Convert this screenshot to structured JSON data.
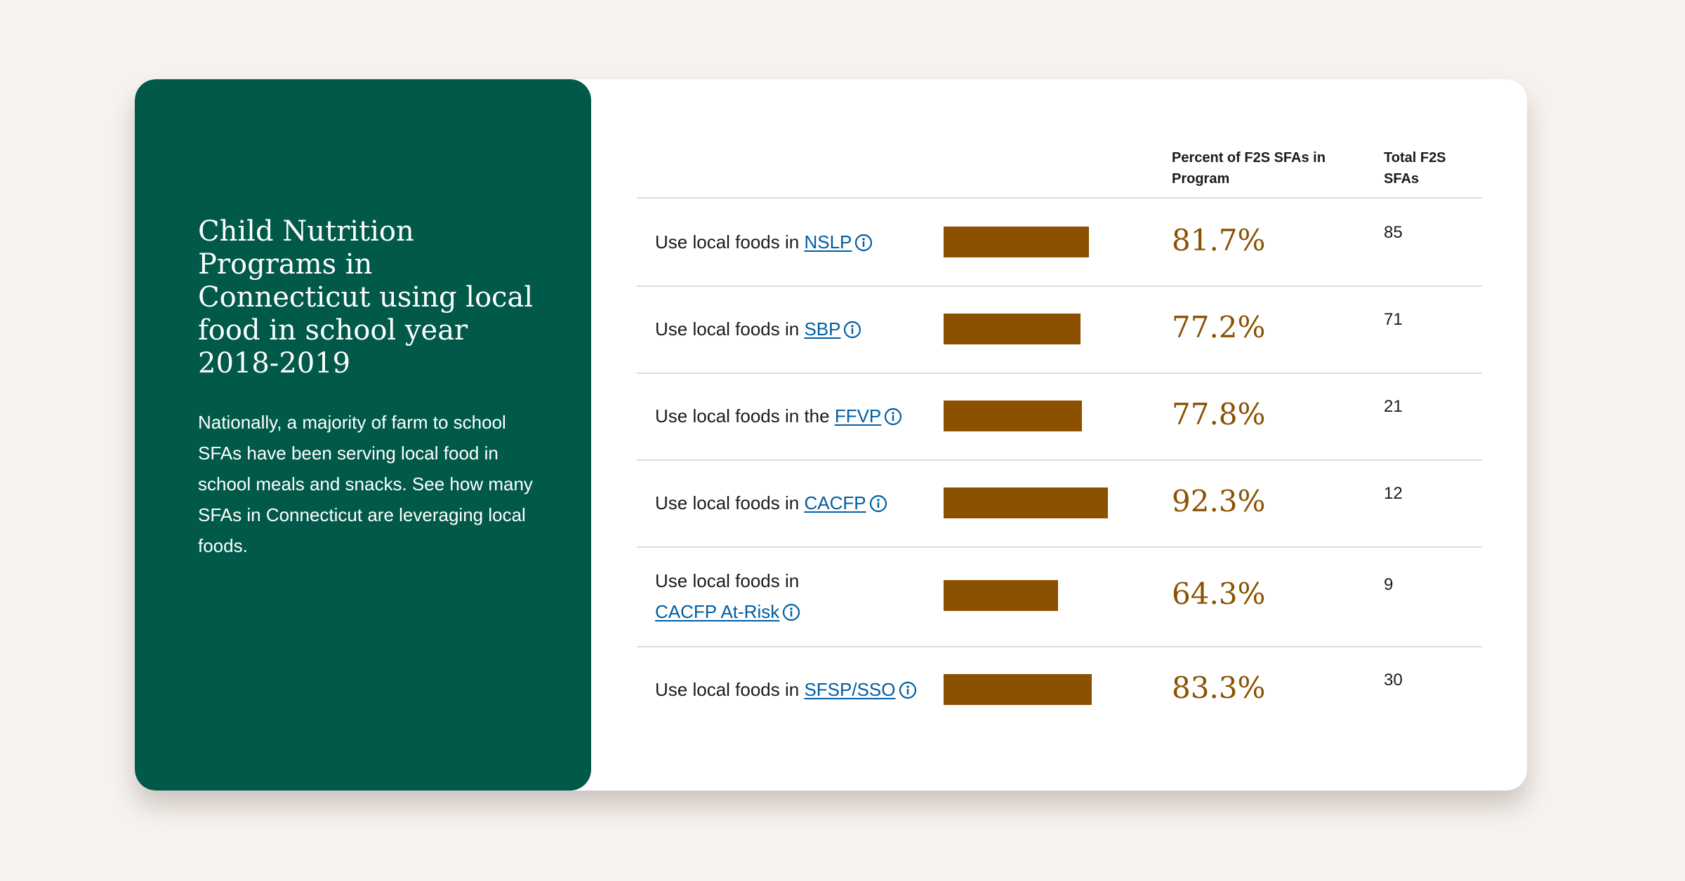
{
  "panel": {
    "title": "Child Nutrition Programs in Connecticut using local food in school year 2018-2019",
    "description": "Nationally, a majority of farm to school SFAs have been serving local food in school meals and snacks. See how many SFAs in Connecticut are leveraging local foods."
  },
  "table": {
    "headers": {
      "percent": "Percent of F2S SFAs in Program",
      "total": "Total F2S SFAs"
    }
  },
  "colors": {
    "panel_bg": "#005949",
    "bar": "#8b5101",
    "link": "#005ea2",
    "page_bg": "#f7f2ee"
  },
  "chart_data": {
    "type": "bar",
    "orientation": "horizontal",
    "categories": [
      "NSLP",
      "SBP",
      "FFVP",
      "CACFP",
      "CACFP At-Risk",
      "SFSP/SSO"
    ],
    "rows": [
      {
        "prefix": "Use local foods in ",
        "link": "NSLP",
        "value": 81.7,
        "value_label": "81.7%",
        "total": "85"
      },
      {
        "prefix": "Use local foods in ",
        "link": "SBP",
        "value": 77.2,
        "value_label": "77.2%",
        "total": "71"
      },
      {
        "prefix": "Use local foods in the ",
        "link": "FFVP",
        "value": 77.8,
        "value_label": "77.8%",
        "total": "21"
      },
      {
        "prefix": "Use local foods in ",
        "link": "CACFP",
        "value": 92.3,
        "value_label": "92.3%",
        "total": "12"
      },
      {
        "prefix": "Use local foods in ",
        "link": "CACFP At-Risk",
        "value": 64.3,
        "value_label": "64.3%",
        "total": "9"
      },
      {
        "prefix": "Use local foods in ",
        "link": "SFSP/SSO",
        "value": 83.3,
        "value_label": "83.3%",
        "total": "30"
      }
    ],
    "values": [
      81.7,
      77.2,
      77.8,
      92.3,
      64.3,
      83.3
    ],
    "xlim": [
      0,
      100
    ],
    "grid": false,
    "legend": "none"
  }
}
